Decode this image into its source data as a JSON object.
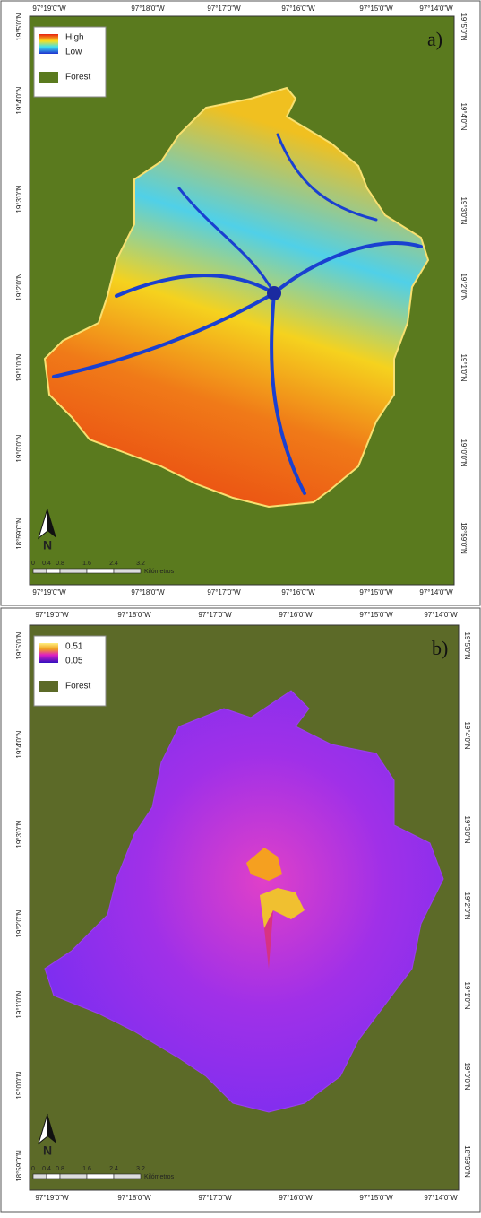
{
  "longitude_labels": [
    "97°19'0\"W",
    "97°18'0\"W",
    "97°17'0\"W",
    "97°16'0\"W",
    "97°15'0\"W",
    "97°14'0\"W"
  ],
  "latitude_labels": [
    "19°5'0\"N",
    "19°4'0\"N",
    "19°3'0\"N",
    "19°2'0\"N",
    "19°1'0\"N",
    "19°0'0\"N",
    "18°59'0\"N"
  ],
  "scale_bar": {
    "labels": [
      "0",
      "0.4",
      "0.8",
      "1.6",
      "2.4",
      "3.2"
    ],
    "unit": "Kilómetros"
  },
  "north_arrow": "N",
  "panels": [
    {
      "label": "a)",
      "legend": {
        "high": "High",
        "low": "Low",
        "forest": "Forest"
      }
    },
    {
      "label": "b)",
      "legend": {
        "high": "0.51",
        "low": "0.05",
        "forest": "Forest"
      }
    }
  ]
}
